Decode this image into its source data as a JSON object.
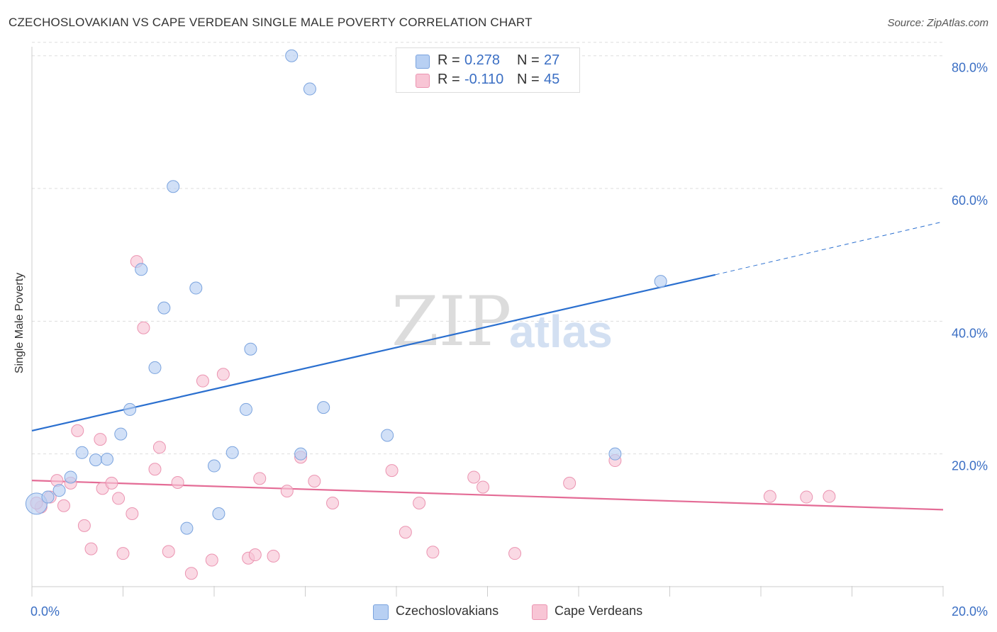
{
  "header": {
    "title": "CZECHOSLOVAKIAN VS CAPE VERDEAN SINGLE MALE POVERTY CORRELATION CHART",
    "source": "Source: ZipAtlas.com"
  },
  "watermark": {
    "zip": "ZIP",
    "atlas": "atlas"
  },
  "stats": {
    "czech": {
      "r_label": "R =",
      "r_value": "0.278",
      "n_label": "N =",
      "n_value": "27"
    },
    "cape": {
      "r_label": "R =",
      "r_value": "-0.110",
      "n_label": "N =",
      "n_value": "45"
    }
  },
  "legend": {
    "czech": "Czechoslovakians",
    "cape": "Cape Verdeans"
  },
  "colors": {
    "czech_fill": "#b8d0f3",
    "czech_stroke": "#7aa3de",
    "czech_line": "#2a6fcf",
    "cape_fill": "#f8c5d5",
    "cape_stroke": "#eb94b1",
    "cape_line": "#e46c96",
    "grid": "#dddddd",
    "axis_text": "#3b6fc4"
  },
  "chart_data": {
    "type": "scatter",
    "title": "CZECHOSLOVAKIAN VS CAPE VERDEAN SINGLE MALE POVERTY CORRELATION CHART",
    "xlabel": "",
    "ylabel": "Single Male Poverty",
    "xlim": [
      0,
      20
    ],
    "ylim": [
      0,
      82
    ],
    "x_tick_labels": [
      "0.0%",
      "20.0%"
    ],
    "y_ticks": [
      20,
      40,
      60,
      80
    ],
    "y_tick_labels": [
      "20.0%",
      "40.0%",
      "60.0%",
      "80.0%"
    ],
    "grid": true,
    "legend_position": "bottom-center",
    "series": [
      {
        "name": "Czechoslovakians",
        "r": 0.278,
        "n": 27,
        "points": [
          [
            0.1,
            12.5
          ],
          [
            0.35,
            13.5
          ],
          [
            0.6,
            14.5
          ],
          [
            0.85,
            16.5
          ],
          [
            1.1,
            20.2
          ],
          [
            1.4,
            19.1
          ],
          [
            1.65,
            19.2
          ],
          [
            1.95,
            23.0
          ],
          [
            2.15,
            26.7
          ],
          [
            2.4,
            47.8
          ],
          [
            2.7,
            33.0
          ],
          [
            2.9,
            42.0
          ],
          [
            3.1,
            60.3
          ],
          [
            3.4,
            8.8
          ],
          [
            3.6,
            45.0
          ],
          [
            4.0,
            18.2
          ],
          [
            4.1,
            11.0
          ],
          [
            4.4,
            20.2
          ],
          [
            4.7,
            26.7
          ],
          [
            4.8,
            35.8
          ],
          [
            5.7,
            80.0
          ],
          [
            5.9,
            20.0
          ],
          [
            6.1,
            75.0
          ],
          [
            6.4,
            27.0
          ],
          [
            7.8,
            22.8
          ],
          [
            12.8,
            20.0
          ],
          [
            13.8,
            46.0
          ]
        ],
        "trend": {
          "x_start": 0,
          "y_start": 23.5,
          "x_solid_end": 15.0,
          "y_solid_end": 47.0,
          "x_end": 20.0,
          "y_end": 55.0
        }
      },
      {
        "name": "Cape Verdeans",
        "r": -0.11,
        "n": 45,
        "points": [
          [
            0.2,
            12.0
          ],
          [
            0.4,
            13.5
          ],
          [
            0.55,
            16.0
          ],
          [
            0.7,
            12.2
          ],
          [
            0.85,
            15.6
          ],
          [
            1.0,
            23.5
          ],
          [
            1.15,
            9.2
          ],
          [
            1.3,
            5.7
          ],
          [
            1.5,
            22.2
          ],
          [
            1.55,
            14.8
          ],
          [
            1.75,
            15.6
          ],
          [
            1.9,
            13.3
          ],
          [
            2.0,
            5.0
          ],
          [
            2.2,
            11.0
          ],
          [
            2.3,
            49.0
          ],
          [
            2.45,
            39.0
          ],
          [
            2.7,
            17.7
          ],
          [
            2.8,
            21.0
          ],
          [
            3.0,
            5.3
          ],
          [
            3.2,
            15.7
          ],
          [
            3.5,
            2.0
          ],
          [
            3.75,
            31.0
          ],
          [
            3.95,
            4.0
          ],
          [
            4.2,
            32.0
          ],
          [
            4.75,
            4.3
          ],
          [
            4.9,
            4.8
          ],
          [
            5.0,
            16.3
          ],
          [
            5.3,
            4.6
          ],
          [
            5.6,
            14.4
          ],
          [
            5.9,
            19.5
          ],
          [
            6.2,
            15.9
          ],
          [
            6.6,
            12.6
          ],
          [
            7.9,
            17.5
          ],
          [
            8.2,
            8.2
          ],
          [
            8.5,
            12.6
          ],
          [
            8.8,
            5.2
          ],
          [
            9.7,
            16.5
          ],
          [
            9.9,
            15.0
          ],
          [
            10.6,
            5.0
          ],
          [
            11.8,
            15.6
          ],
          [
            12.8,
            19.0
          ],
          [
            16.2,
            13.6
          ],
          [
            17.0,
            13.5
          ],
          [
            17.5,
            13.6
          ],
          [
            0.1,
            12.6
          ]
        ],
        "trend": {
          "x_start": 0,
          "y_start": 16.0,
          "x_end": 20.0,
          "y_end": 11.6
        }
      }
    ]
  }
}
